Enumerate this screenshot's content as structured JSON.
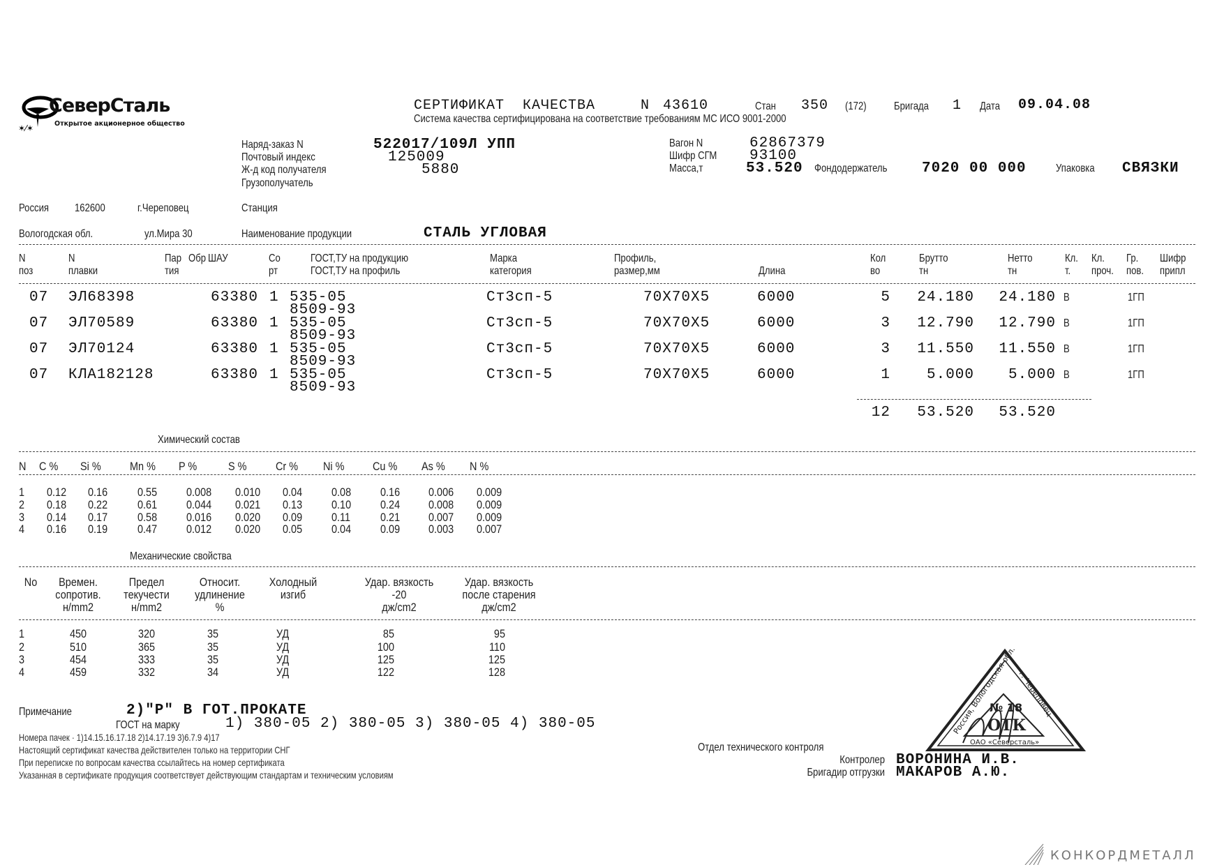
{
  "logo": {
    "name": "СеверСталь",
    "tagline": "Открытое акционерное общество"
  },
  "header": {
    "title": "СЕРТИФИКАТ  КАЧЕСТВА",
    "number_label": "N",
    "number": "43610",
    "mill_label": "Стан",
    "mill": "350",
    "mill_code": "(172)",
    "brigade_label": "Бригада",
    "brigade": "1",
    "date_label": "Дата",
    "date": "09.04.08",
    "subtitle": "Система качества сертифицирована на соответствие требованиям МС ИСО 9001-2000"
  },
  "order": {
    "order_label": "Наряд-заказ N",
    "order": "522017/109Л УПП",
    "postal_label": "Почтовый индекс",
    "postal": "125009",
    "rail_code_label": "Ж-д код получателя",
    "rail_code": "5880",
    "consignee_label": "Грузополучатель",
    "wagon_label": "Вагон N",
    "wagon": "62867379",
    "sgm_label": "Шифр СГМ",
    "sgm": "93100",
    "mass_label": "Масса,т",
    "mass": "53.520",
    "fund_label": "Фондодержатель",
    "fund": "7020 00 000",
    "packing_label": "Упаковка",
    "packing": "СВЯЗКИ"
  },
  "address": {
    "country": "Россия",
    "zip": "162600",
    "city": "г.Череповец",
    "station_label": "Станция",
    "region": "Вологодская обл.",
    "street": "ул.Мира 30",
    "product_label": "Наименование продукции",
    "product": "СТАЛЬ УГЛОВАЯ"
  },
  "products": {
    "headers": [
      [
        "N",
        "поз"
      ],
      [
        "N",
        "плавки"
      ],
      [
        "Пар",
        "тия"
      ],
      [
        "Обр",
        ""
      ],
      [
        "ШАУ",
        ""
      ],
      [
        "Со",
        "рт"
      ],
      [
        "ГОСТ,ТУ на продукцию",
        "ГОСТ,ТУ на профиль"
      ],
      [
        "Марка",
        "категория"
      ],
      [
        "Профиль,",
        "размер,мм"
      ],
      [
        "",
        "Длина"
      ],
      [
        "Кол",
        "во"
      ],
      [
        "Брутто",
        "тн"
      ],
      [
        "Нетто",
        "тн"
      ],
      [
        "Кл.",
        "т."
      ],
      [
        "Кл.",
        "проч."
      ],
      [
        "Гр.",
        "пов."
      ],
      [
        "Шифр",
        "припл"
      ]
    ],
    "rows": [
      {
        "pos": "07",
        "heat": "ЭЛ68398",
        "batch": "63380",
        "grade": "1",
        "gost_product": "535-05",
        "gost_profile": "8509-93",
        "steel": "Ст3сп-5",
        "profile": "70X70X5",
        "length": "6000",
        "qty": "5",
        "gross": "24.180",
        "net": "24.180",
        "class": "В",
        "surface": "1ГП"
      },
      {
        "pos": "07",
        "heat": "ЭЛ70589",
        "batch": "63380",
        "grade": "1",
        "gost_product": "535-05",
        "gost_profile": "8509-93",
        "steel": "Ст3сп-5",
        "profile": "70X70X5",
        "length": "6000",
        "qty": "3",
        "gross": "12.790",
        "net": "12.790",
        "class": "В",
        "surface": "1ГП"
      },
      {
        "pos": "07",
        "heat": "ЭЛ70124",
        "batch": "63380",
        "grade": "1",
        "gost_product": "535-05",
        "gost_profile": "8509-93",
        "steel": "Ст3сп-5",
        "profile": "70X70X5",
        "length": "6000",
        "qty": "3",
        "gross": "11.550",
        "net": "11.550",
        "class": "В",
        "surface": "1ГП"
      },
      {
        "pos": "07",
        "heat": "КЛА182128",
        "batch": "63380",
        "grade": "1",
        "gost_product": "535-05",
        "gost_profile": "8509-93",
        "steel": "Ст3сп-5",
        "profile": "70X70X5",
        "length": "6000",
        "qty": "1",
        "gross": "5.000",
        "net": "5.000",
        "class": "В",
        "surface": "1ГП"
      }
    ],
    "totals": {
      "qty": "12",
      "gross": "53.520",
      "net": "53.520"
    }
  },
  "chemistry": {
    "title": "Химический состав",
    "headers": [
      "N",
      "C %",
      "Si %",
      "Mn %",
      "P %",
      "S %",
      "Cr %",
      "Ni %",
      "Cu %",
      "As %",
      "N %"
    ],
    "rows": [
      [
        "1",
        "0.12",
        "0.16",
        "0.55",
        "0.008",
        "0.010",
        "0.04",
        "0.08",
        "0.16",
        "0.006",
        "0.009"
      ],
      [
        "2",
        "0.18",
        "0.22",
        "0.61",
        "0.044",
        "0.021",
        "0.13",
        "0.10",
        "0.24",
        "0.008",
        "0.009"
      ],
      [
        "3",
        "0.14",
        "0.17",
        "0.58",
        "0.016",
        "0.020",
        "0.09",
        "0.11",
        "0.21",
        "0.007",
        "0.009"
      ],
      [
        "4",
        "0.16",
        "0.19",
        "0.47",
        "0.012",
        "0.020",
        "0.05",
        "0.04",
        "0.09",
        "0.003",
        "0.007"
      ]
    ]
  },
  "mechanics": {
    "title": "Механические свойства",
    "headers": [
      [
        "No",
        "",
        ""
      ],
      [
        "Времен.",
        "сопротив.",
        "н/mm2"
      ],
      [
        "Предел",
        "текучести",
        "н/mm2"
      ],
      [
        "Относит.",
        "удлинение",
        "%"
      ],
      [
        "Холодный",
        "изгиб",
        ""
      ],
      [
        "Удар. вязкость",
        "-20",
        "дж/cm2"
      ],
      [
        "Удар. вязкость",
        "после старения",
        "дж/cm2"
      ]
    ],
    "rows": [
      [
        "1",
        "450",
        "320",
        "35",
        "УД",
        "85",
        "95"
      ],
      [
        "2",
        "510",
        "365",
        "35",
        "УД",
        "100",
        "110"
      ],
      [
        "3",
        "454",
        "333",
        "35",
        "УД",
        "125",
        "125"
      ],
      [
        "4",
        "459",
        "332",
        "34",
        "УД",
        "122",
        "128"
      ]
    ]
  },
  "notes": {
    "note_label": "Примечание",
    "note": "2)\"Р\" В ГОТ.ПРОКАТЕ",
    "gost_label": "ГОСТ на марку",
    "gost": "1) 380-05 2) 380-05 3) 380-05 4) 380-05",
    "packs": "Номера пачек · 1)14.15.16.17.18 2)14.17.19 3)6.7.9 4)17",
    "line1": "Настоящий сертификат качества действителен только на территории СНГ",
    "line2": "При переписке по вопросам качества ссылайтесь на номер сертификата",
    "line3": "Указанная в сертификате продукция соответствует действующим стандартам и техническим условиям"
  },
  "signatures": {
    "dept": "Отдел технического контроля",
    "controller_label": "Контролер",
    "controller": "ВОРОНИНА И.В.",
    "foreman_label": "Бригадир отгрузки",
    "foreman": "МАКАРОВ А.Ю."
  },
  "stamp": {
    "text_left": "Россия, Вологодская обл.",
    "text_right": "г. Череповец",
    "number": "№ 18",
    "dept": "ОТК",
    "company": "ОАО «Северсталь»"
  },
  "watermark": {
    "text": "КОНКОРДМЕТАЛЛ"
  }
}
